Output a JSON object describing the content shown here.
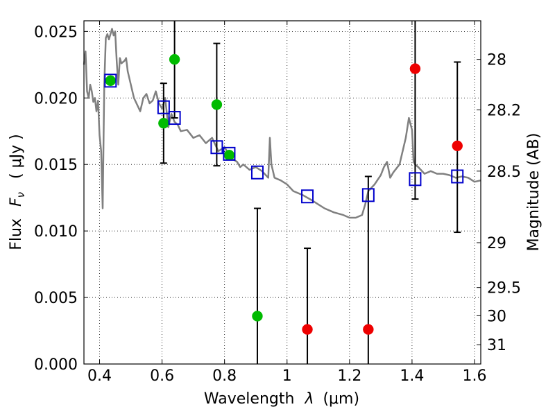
{
  "chart_data": {
    "type": "scatter",
    "title": "",
    "xlabel": "Wavelength",
    "xlabel_symbol": "λ",
    "xlabel_unit": "(μm)",
    "ylabel": "Flux",
    "ylabel_symbol": "F",
    "ylabel_subscript": "ν",
    "ylabel_unit": "( μJy )",
    "y2label": "Magnitude (AB)",
    "xlim": [
      0.35,
      1.62
    ],
    "ylim": [
      0.0,
      0.0258
    ],
    "grid": true,
    "x_ticks": [
      {
        "value": 0.4,
        "label": "0.4"
      },
      {
        "value": 0.6,
        "label": "0.6"
      },
      {
        "value": 0.8,
        "label": "0.8"
      },
      {
        "value": 1.0,
        "label": "1"
      },
      {
        "value": 1.2,
        "label": "1.2"
      },
      {
        "value": 1.4,
        "label": "1.4"
      },
      {
        "value": 1.6,
        "label": "1.6"
      }
    ],
    "y_ticks": [
      {
        "value": 0.0,
        "label": "0.000"
      },
      {
        "value": 0.005,
        "label": "0.005"
      },
      {
        "value": 0.01,
        "label": "0.010"
      },
      {
        "value": 0.015,
        "label": "0.015"
      },
      {
        "value": 0.02,
        "label": "0.020"
      },
      {
        "value": 0.025,
        "label": "0.025"
      }
    ],
    "y2_ticks": [
      {
        "flux": 0.0229,
        "label": "28"
      },
      {
        "flux": 0.0191,
        "label": "28.2"
      },
      {
        "flux": 0.0145,
        "label": "28.5"
      },
      {
        "flux": 0.00912,
        "label": "29"
      },
      {
        "flux": 0.00575,
        "label": "29.5"
      },
      {
        "flux": 0.00363,
        "label": "30"
      },
      {
        "flux": 0.00145,
        "label": "31"
      }
    ],
    "series": [
      {
        "name": "model-spectrum",
        "kind": "line",
        "color": "#808080",
        "x": [
          0.35,
          0.355,
          0.36,
          0.365,
          0.37,
          0.375,
          0.38,
          0.385,
          0.39,
          0.395,
          0.4,
          0.405,
          0.41,
          0.415,
          0.42,
          0.425,
          0.43,
          0.435,
          0.44,
          0.445,
          0.45,
          0.455,
          0.46,
          0.465,
          0.47,
          0.48,
          0.485,
          0.49,
          0.5,
          0.51,
          0.52,
          0.53,
          0.54,
          0.55,
          0.56,
          0.57,
          0.58,
          0.59,
          0.6,
          0.61,
          0.62,
          0.63,
          0.64,
          0.65,
          0.66,
          0.68,
          0.7,
          0.72,
          0.74,
          0.76,
          0.78,
          0.8,
          0.82,
          0.84,
          0.85,
          0.86,
          0.88,
          0.9,
          0.92,
          0.94,
          0.945,
          0.95,
          0.955,
          0.96,
          0.98,
          1.0,
          1.02,
          1.05,
          1.08,
          1.1,
          1.12,
          1.15,
          1.18,
          1.2,
          1.22,
          1.24,
          1.25,
          1.26,
          1.28,
          1.3,
          1.31,
          1.32,
          1.33,
          1.34,
          1.36,
          1.38,
          1.39,
          1.4,
          1.405,
          1.41,
          1.42,
          1.44,
          1.46,
          1.48,
          1.5,
          1.52,
          1.54,
          1.56,
          1.58,
          1.6,
          1.62
        ],
        "y": [
          0.0225,
          0.0235,
          0.0205,
          0.02,
          0.021,
          0.0205,
          0.0197,
          0.02,
          0.019,
          0.0198,
          0.0172,
          0.016,
          0.0117,
          0.021,
          0.0245,
          0.0248,
          0.0244,
          0.0248,
          0.0252,
          0.0247,
          0.025,
          0.0227,
          0.021,
          0.023,
          0.0226,
          0.0228,
          0.023,
          0.022,
          0.021,
          0.02,
          0.0195,
          0.019,
          0.02,
          0.0203,
          0.0196,
          0.0198,
          0.0205,
          0.0196,
          0.0192,
          0.02,
          0.0178,
          0.0188,
          0.0182,
          0.018,
          0.0175,
          0.0176,
          0.017,
          0.0172,
          0.0166,
          0.017,
          0.016,
          0.0163,
          0.0155,
          0.0152,
          0.0148,
          0.015,
          0.0146,
          0.0148,
          0.0145,
          0.014,
          0.017,
          0.015,
          0.0145,
          0.014,
          0.0138,
          0.0135,
          0.013,
          0.0127,
          0.0123,
          0.012,
          0.0117,
          0.0114,
          0.0112,
          0.011,
          0.011,
          0.0112,
          0.012,
          0.013,
          0.0135,
          0.0142,
          0.0148,
          0.0152,
          0.014,
          0.0144,
          0.015,
          0.017,
          0.0185,
          0.0176,
          0.0152,
          0.015,
          0.0148,
          0.0143,
          0.0145,
          0.0143,
          0.0143,
          0.0142,
          0.014,
          0.0141,
          0.014,
          0.0137,
          0.0138
        ]
      },
      {
        "name": "model-photometry",
        "kind": "open-square",
        "color": "#0000cc",
        "x": [
          0.435,
          0.605,
          0.64,
          0.775,
          0.815,
          0.905,
          1.065,
          1.26,
          1.41,
          1.545
        ],
        "y": [
          0.0213,
          0.0193,
          0.0185,
          0.0163,
          0.0158,
          0.0144,
          0.0126,
          0.0127,
          0.0139,
          0.0141
        ]
      },
      {
        "name": "detections",
        "kind": "point",
        "color": "#00bb00",
        "x": [
          0.435,
          0.605,
          0.64,
          0.775,
          0.815,
          0.905
        ],
        "y": [
          0.0213,
          0.0181,
          0.0229,
          0.0195,
          0.0157,
          0.0036
        ],
        "yerr_low": [
          null,
          0.0151,
          0.0185,
          0.0149,
          null,
          0.0
        ],
        "yerr_high": [
          null,
          0.0211,
          0.0258,
          0.0241,
          null,
          0.0117
        ]
      },
      {
        "name": "non-detections",
        "kind": "point",
        "color": "#ee0000",
        "x": [
          1.065,
          1.26,
          1.41,
          1.545
        ],
        "y": [
          0.0026,
          0.0026,
          0.0222,
          0.0164
        ],
        "yerr_low": [
          0.0,
          0.0,
          0.0124,
          0.0099
        ],
        "yerr_high": [
          0.0087,
          0.0141,
          0.0258,
          0.0227
        ]
      }
    ]
  }
}
